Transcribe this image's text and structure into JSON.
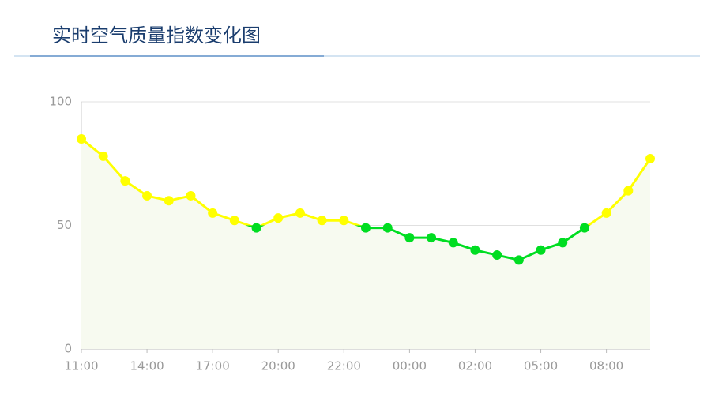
{
  "chart_data": {
    "type": "line",
    "title": "实时空气质量指数变化图",
    "categories": [
      "11:00",
      null,
      null,
      "14:00",
      null,
      null,
      "17:00",
      null,
      null,
      "20:00",
      null,
      null,
      "22:00",
      null,
      null,
      "00:00",
      null,
      null,
      "02:00",
      null,
      null,
      "05:00",
      null,
      null,
      "08:00",
      null,
      null
    ],
    "values": [
      85,
      78,
      68,
      62,
      60,
      62,
      55,
      52,
      49,
      53,
      55,
      52,
      52,
      49,
      49,
      45,
      45,
      43,
      40,
      38,
      36,
      40,
      43,
      49,
      55,
      64,
      77
    ],
    "ylim": [
      0,
      100
    ],
    "yticks": [
      0,
      50,
      100
    ],
    "grid": true,
    "visual_map": {
      "threshold": 50,
      "above_color": "#ffff00",
      "below_color": "#00dd22"
    },
    "area_color": "#f7faf0"
  }
}
